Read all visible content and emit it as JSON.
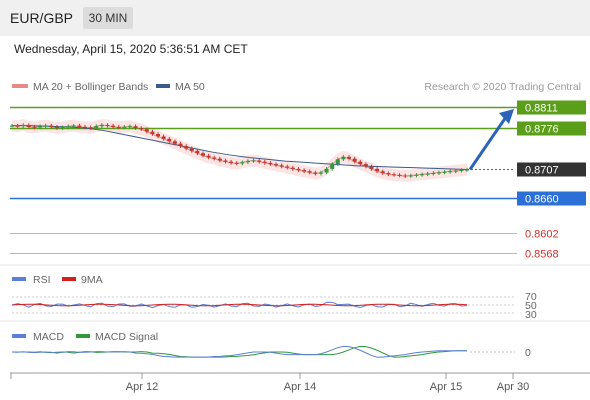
{
  "header": {
    "symbol": "EUR/GBP",
    "timeframe": "30 MIN"
  },
  "timestamp": "Wednesday, April 15, 2020 5:36:51 AM CET",
  "legend": {
    "bollinger": "MA 20 + Bollinger Bands",
    "ma50": "MA 50",
    "credit": "Research © 2020 Trading Central"
  },
  "colors": {
    "bull": "#2e9a3a",
    "bear": "#c0392b",
    "ma20": "#e58a8a",
    "ma50": "#3a5a8c",
    "band": "#fbd9d9",
    "resistance": "#5a9e1a",
    "support": "#2c6fd6",
    "support2": "#e88c8c",
    "arrow": "#2a63b8",
    "current": "#333333"
  },
  "levels": [
    {
      "label": "0.8811",
      "kind": "resistance"
    },
    {
      "label": "0.8776",
      "kind": "resistance"
    },
    {
      "label": "0.8707",
      "kind": "current"
    },
    {
      "label": "0.8660",
      "kind": "support"
    },
    {
      "label": "0.8602",
      "kind": "support2"
    },
    {
      "label": "0.8568",
      "kind": "support2"
    }
  ],
  "rsi_panel": {
    "rsi_label": "RSI",
    "ma_label": "9MA",
    "ticks": [
      "70",
      "50",
      "30"
    ]
  },
  "macd_panel": {
    "macd_label": "MACD",
    "signal_label": "MACD Signal",
    "tick": "0"
  },
  "x_axis": {
    "ticks": [
      "Apr 12",
      "Apr 14",
      "Apr 15",
      "Apr 30"
    ]
  },
  "chart_data": {
    "type": "candlestick",
    "instrument": "EUR/GBP",
    "interval": "30 MIN",
    "price_series": [
      0.878,
      0.8779,
      0.8781,
      0.8778,
      0.8777,
      0.8779,
      0.878,
      0.8778,
      0.8776,
      0.8777,
      0.8779,
      0.878,
      0.8778,
      0.8777,
      0.8776,
      0.8779,
      0.8781,
      0.878,
      0.8778,
      0.8777,
      0.8778,
      0.8779,
      0.8776,
      0.8774,
      0.877,
      0.8766,
      0.8762,
      0.8758,
      0.8754,
      0.875,
      0.8746,
      0.8742,
      0.8738,
      0.8734,
      0.873,
      0.8727,
      0.8725,
      0.8722,
      0.872,
      0.8718,
      0.8717,
      0.8719,
      0.8721,
      0.8722,
      0.872,
      0.8718,
      0.8716,
      0.8714,
      0.8712,
      0.871,
      0.8708,
      0.8706,
      0.8704,
      0.8702,
      0.87,
      0.8702,
      0.8708,
      0.8716,
      0.8724,
      0.8728,
      0.8725,
      0.872,
      0.8716,
      0.8712,
      0.8708,
      0.8704,
      0.8701,
      0.8699,
      0.8698,
      0.8697,
      0.8696,
      0.8697,
      0.8698,
      0.8699,
      0.87,
      0.8701,
      0.8702,
      0.8703,
      0.8704,
      0.8705,
      0.8706,
      0.8707
    ],
    "ma50": [
      0.878,
      0.878,
      0.8779,
      0.8778,
      0.8776,
      0.8772,
      0.8766,
      0.876,
      0.8754,
      0.8748,
      0.8742,
      0.8736,
      0.8731,
      0.8727,
      0.8724,
      0.8721,
      0.8719,
      0.8717,
      0.8715,
      0.8713,
      0.8712,
      0.8711,
      0.871,
      0.8709,
      0.8708,
      0.8707
    ],
    "forecast": {
      "from": 0.8707,
      "to": 0.8811,
      "direction": "up"
    },
    "levels": {
      "resistance": [
        0.8811,
        0.8776
      ],
      "current": 0.8707,
      "support": [
        0.866,
        0.8602,
        0.8568
      ]
    },
    "rsi": {
      "overbought": 70,
      "mid": 50,
      "oversold": 30
    },
    "macd": {
      "zero_line": 0
    },
    "x_ticks": [
      "Apr 12",
      "Apr 14",
      "Apr 15",
      "Apr 30"
    ]
  }
}
